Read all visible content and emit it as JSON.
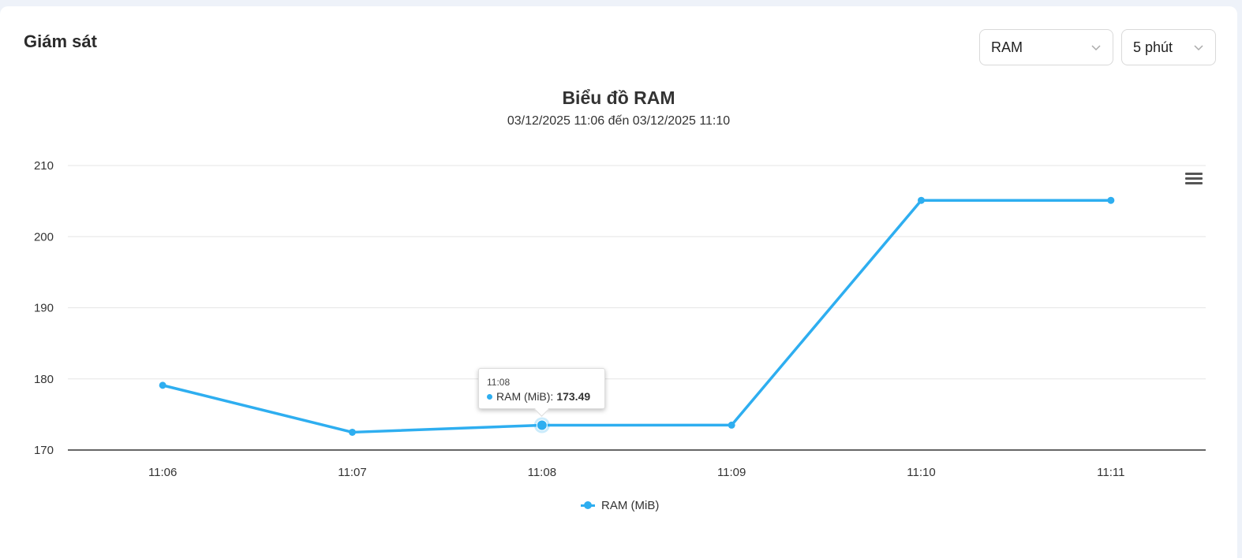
{
  "panel": {
    "title": "Giám sát"
  },
  "controls": {
    "metric_select": {
      "value": "RAM"
    },
    "range_select": {
      "value": "5 phút"
    }
  },
  "tooltip": {
    "time": "11:08",
    "series": "RAM (MiB):",
    "value": "173.49"
  },
  "colors": {
    "series": "#2eaef0",
    "grid": "#e6e6e6",
    "axis": "#333333"
  },
  "icons": {
    "menu": "hamburger-menu-icon",
    "chevron": "chevron-down-icon"
  },
  "chart_data": {
    "type": "line",
    "title": "Biểu đồ RAM",
    "subtitle": "03/12/2025 11:06 đến 03/12/2025 11:10",
    "categories": [
      "11:06",
      "11:07",
      "11:08",
      "11:09",
      "11:10",
      "11:11"
    ],
    "series": [
      {
        "name": "RAM (MiB)",
        "values": [
          179.1,
          172.5,
          173.49,
          173.5,
          205.1,
          205.1
        ]
      }
    ],
    "ylim": [
      170,
      210
    ],
    "yticks": [
      170,
      180,
      190,
      200,
      210
    ],
    "grid": true,
    "legend": "bottom-center",
    "highlighted_index": 2
  }
}
